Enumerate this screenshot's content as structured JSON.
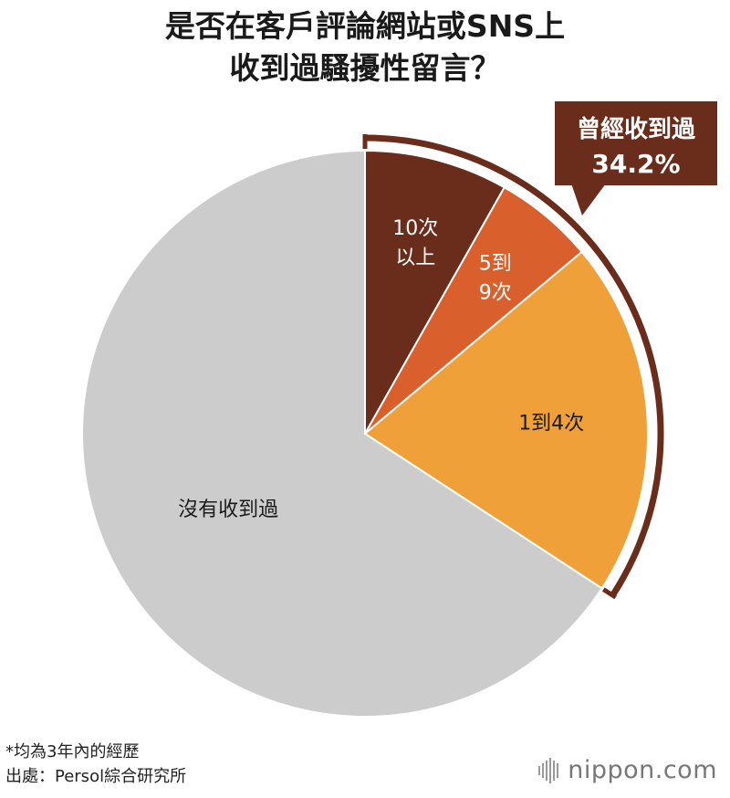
{
  "title": {
    "line1": "是否在客戶評論網站或SNS上",
    "line2": "收到過騷擾性留言？"
  },
  "chart_data": {
    "type": "pie",
    "title": "是否在客戶評論網站或SNS上收到過騷擾性留言？",
    "slices": [
      {
        "label": "10次以上",
        "label_lines": [
          "10次",
          "以上"
        ],
        "value": 8.2,
        "color": "#6b2d1b",
        "text_color": "#ffffff"
      },
      {
        "label": "5到9次",
        "label_lines": [
          "5到",
          "9次"
        ],
        "value": 5.7,
        "color": "#d9602d",
        "text_color": "#ffffff"
      },
      {
        "label": "1到4次",
        "label_lines": [
          "1到4次"
        ],
        "value": 20.3,
        "color": "#f0a038",
        "text_color": "#1a1a1a"
      },
      {
        "label": "沒有收到過",
        "label_lines": [
          "沒有收到過"
        ],
        "value": 65.8,
        "color": "#cccccc",
        "text_color": "#1a1a1a"
      }
    ],
    "callout": {
      "label": "曾經收到過",
      "value": "34.2%",
      "color": "#6b2d1b"
    }
  },
  "notes": {
    "line1": "*均為3年內的經歷",
    "line2": "出處：Persol綜合研究所"
  },
  "logo": {
    "text": "nippon.com"
  }
}
